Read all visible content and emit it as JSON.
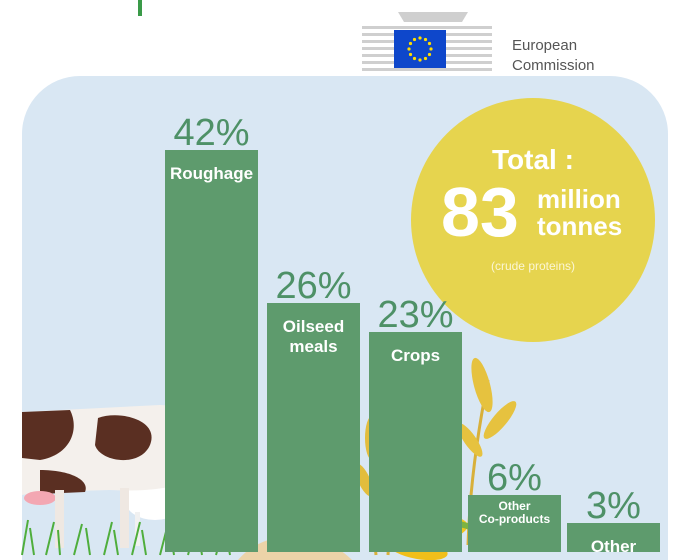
{
  "logo": {
    "line1": "European",
    "line2": "Commission"
  },
  "total": {
    "label": "Total :",
    "number": "83",
    "unit_line1": "million",
    "unit_line2": "tonnes",
    "note": "(crude proteins)"
  },
  "colors": {
    "bar": "#5e9b6d",
    "percent_text": "#4e9167",
    "panel": "#d9e7f3",
    "circle": "#e6d44e",
    "eu_flag": "#0e47cb",
    "eu_star": "#ffdd00"
  },
  "chart_data": {
    "type": "bar",
    "categories": [
      "Roughage",
      "Oilseed meals",
      "Crops",
      "Other Co-products",
      "Other"
    ],
    "values": [
      42,
      26,
      23,
      6,
      3
    ],
    "value_labels": [
      "42%",
      "26%",
      "23%",
      "6%",
      "3%"
    ],
    "bar_labels": [
      [
        "Roughage"
      ],
      [
        "Oilseed",
        "meals"
      ],
      [
        "Crops"
      ],
      [
        "Other",
        "Co-products"
      ],
      [
        "Other"
      ]
    ],
    "unit": "%",
    "title": "",
    "xlabel": "",
    "ylabel": "",
    "ylim": [
      0,
      42
    ],
    "grid": false
  }
}
